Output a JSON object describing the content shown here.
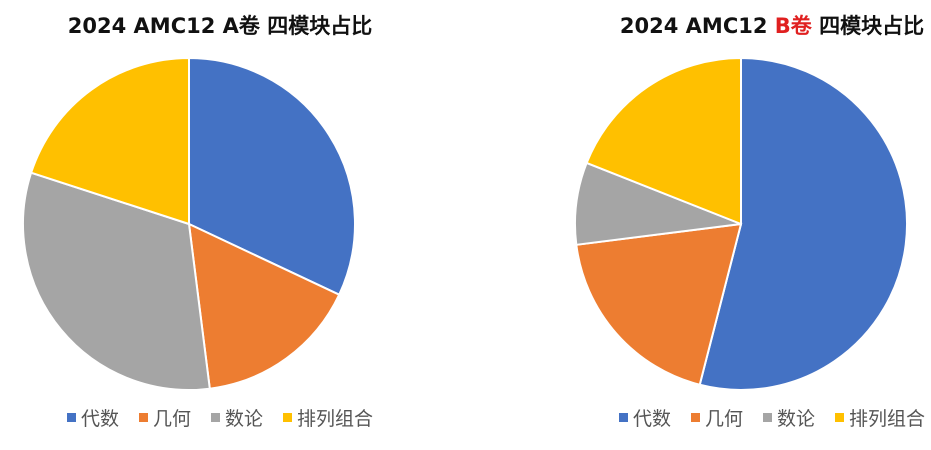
{
  "charts": [
    {
      "title_prefix": "2024 AMC12 ",
      "title_accent": "A卷",
      "title_suffix": " 四模块占比",
      "accent_color": "#111111"
    },
    {
      "title_prefix": "2024 AMC12 ",
      "title_accent": "B卷",
      "title_suffix": " 四模块占比",
      "accent_color": "#e02020"
    }
  ],
  "legend": [
    {
      "label": "代数",
      "color": "#4472c4"
    },
    {
      "label": "几何",
      "color": "#ed7d31"
    },
    {
      "label": "数论",
      "color": "#a5a5a5"
    },
    {
      "label": "排列组合",
      "color": "#ffc000"
    }
  ],
  "chart_data": [
    {
      "type": "pie",
      "title": "2024 AMC12 A卷 四模块占比",
      "categories": [
        "代数",
        "几何",
        "数论",
        "排列组合"
      ],
      "values": [
        32,
        16,
        32,
        20
      ],
      "colors": [
        "#4472c4",
        "#ed7d31",
        "#a5a5a5",
        "#ffc000"
      ],
      "start_angle": "12 o'clock, clockwise",
      "legend_position": "bottom"
    },
    {
      "type": "pie",
      "title": "2024 AMC12 B卷 四模块占比",
      "categories": [
        "代数",
        "几何",
        "数论",
        "排列组合"
      ],
      "values": [
        54,
        19,
        8,
        19
      ],
      "colors": [
        "#4472c4",
        "#ed7d31",
        "#a5a5a5",
        "#ffc000"
      ],
      "start_angle": "12 o'clock, clockwise",
      "legend_position": "bottom"
    }
  ]
}
